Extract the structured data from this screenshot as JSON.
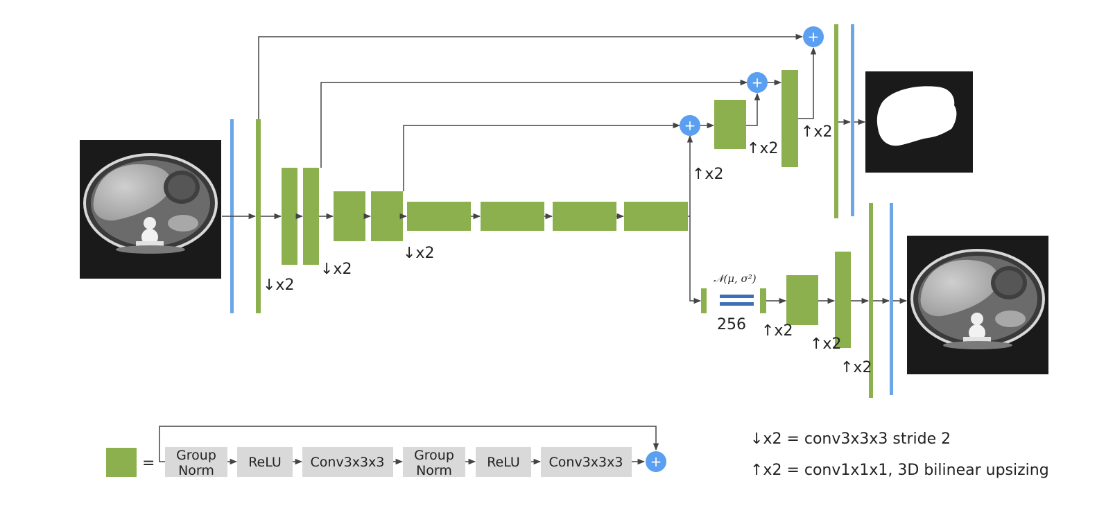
{
  "labels": {
    "down_x2": "↓x2",
    "up_x2": "↑x2",
    "distribution": "𝒩(μ, σ²)",
    "latent_size": "256",
    "plus": "+",
    "equals": "="
  },
  "block_sequence": [
    {
      "line1": "Group",
      "line2": "Norm"
    },
    {
      "line1": "ReLU",
      "line2": ""
    },
    {
      "line1": "Conv3x3x3",
      "line2": ""
    },
    {
      "line1": "Group",
      "line2": "Norm"
    },
    {
      "line1": "ReLU",
      "line2": ""
    },
    {
      "line1": "Conv3x3x3",
      "line2": ""
    }
  ],
  "legend": {
    "down": "↓x2 = conv3x3x3 stride 2",
    "up": "↑x2 = conv1x1x1, 3D bilinear upsizing"
  },
  "colors": {
    "green_block": "#8db04e",
    "blue_bar": "#6aa6e8",
    "plus_circle": "#5b9ff0",
    "gray_box": "#d9d9d9",
    "arrow": "#444444",
    "latent_bars": "#3b6fb6",
    "ct_background": "#1a1a1a"
  }
}
